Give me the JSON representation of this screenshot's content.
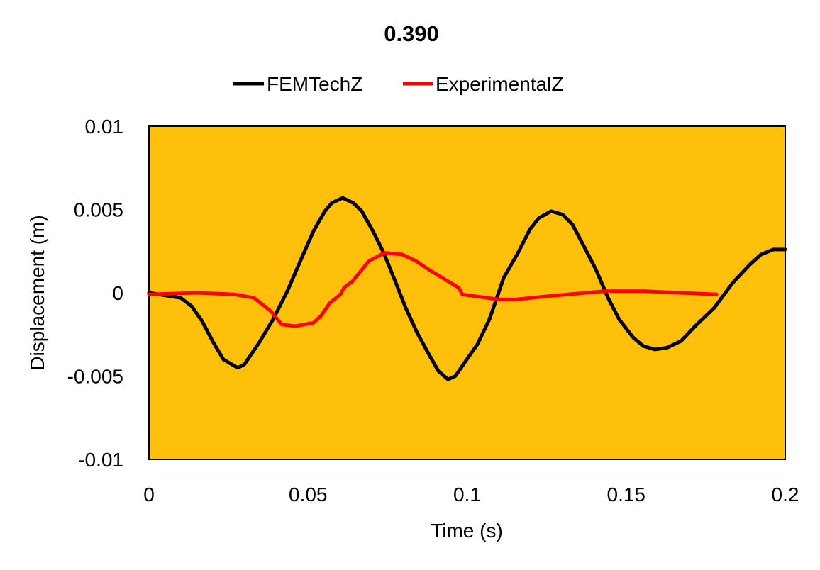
{
  "chart_data": {
    "type": "line",
    "title": "0.390",
    "xlabel": "Time (s)",
    "ylabel": "Displacement (m)",
    "xlim": [
      0,
      0.2
    ],
    "ylim": [
      -0.01,
      0.01
    ],
    "xticks": [
      0,
      0.05,
      0.1,
      0.15,
      0.2
    ],
    "xtick_labels": [
      "0",
      "0.05",
      "0.1",
      "0.15",
      "0.2"
    ],
    "yticks": [
      0.01,
      0.005,
      0,
      -0.005,
      -0.01
    ],
    "ytick_labels": [
      "0.01",
      "0.005",
      "0",
      "-0.005",
      "-0.01"
    ],
    "grid": false,
    "legend_position": "top",
    "plot_background": "#FFC00B",
    "series": [
      {
        "name": "FEMTechZ",
        "color": "#000000",
        "points": [
          [
            0,
            0
          ],
          [
            0.01,
            -0.0003
          ],
          [
            0.0134,
            -0.0008
          ],
          [
            0.0167,
            -0.0017
          ],
          [
            0.02,
            -0.0029
          ],
          [
            0.0234,
            -0.004
          ],
          [
            0.0279,
            -0.0045
          ],
          [
            0.03,
            -0.0043
          ],
          [
            0.0346,
            -0.003
          ],
          [
            0.039,
            -0.0016
          ],
          [
            0.0435,
            0.0001
          ],
          [
            0.048,
            0.0021
          ],
          [
            0.0517,
            0.0037
          ],
          [
            0.0553,
            0.0049
          ],
          [
            0.0575,
            0.0054
          ],
          [
            0.0609,
            0.0057
          ],
          [
            0.0642,
            0.0054
          ],
          [
            0.0669,
            0.0049
          ],
          [
            0.0707,
            0.0036
          ],
          [
            0.074,
            0.0023
          ],
          [
            0.0776,
            0.0006
          ],
          [
            0.0807,
            -0.0009
          ],
          [
            0.0843,
            -0.0024
          ],
          [
            0.088,
            -0.0037
          ],
          [
            0.091,
            -0.0047
          ],
          [
            0.094,
            -0.0052
          ],
          [
            0.0963,
            -0.005
          ],
          [
            0.0999,
            -0.004
          ],
          [
            0.1032,
            -0.0031
          ],
          [
            0.107,
            -0.0016
          ],
          [
            0.1115,
            0.0009
          ],
          [
            0.116,
            0.0024
          ],
          [
            0.1197,
            0.0038
          ],
          [
            0.1226,
            0.0045
          ],
          [
            0.1264,
            0.0049
          ],
          [
            0.13,
            0.0047
          ],
          [
            0.1331,
            0.0041
          ],
          [
            0.1367,
            0.0028
          ],
          [
            0.1405,
            0.0014
          ],
          [
            0.1443,
            -0.0003
          ],
          [
            0.1478,
            -0.0016
          ],
          [
            0.1523,
            -0.0027
          ],
          [
            0.1554,
            -0.0032
          ],
          [
            0.159,
            -0.0034
          ],
          [
            0.1628,
            -0.0033
          ],
          [
            0.1672,
            -0.0029
          ],
          [
            0.1717,
            -0.002
          ],
          [
            0.1777,
            -0.0009
          ],
          [
            0.1835,
            0.0006
          ],
          [
            0.1889,
            0.0017
          ],
          [
            0.1924,
            0.0023
          ],
          [
            0.1962,
            0.0026
          ],
          [
            0.2,
            0.0026
          ]
        ]
      },
      {
        "name": "ExperimentalZ",
        "color": "#FF0000",
        "points": [
          [
            0,
            -0.0001
          ],
          [
            0.015,
            0
          ],
          [
            0.027,
            -0.0001
          ],
          [
            0.033,
            -0.0003
          ],
          [
            0.0383,
            -0.0011
          ],
          [
            0.0417,
            -0.0019
          ],
          [
            0.046,
            -0.002
          ],
          [
            0.0517,
            -0.0018
          ],
          [
            0.054,
            -0.0014
          ],
          [
            0.0569,
            -0.0006
          ],
          [
            0.0602,
            -0.0001
          ],
          [
            0.0613,
            0.0003
          ],
          [
            0.064,
            0.0007
          ],
          [
            0.0691,
            0.0019
          ],
          [
            0.074,
            0.0024
          ],
          [
            0.0796,
            0.0023
          ],
          [
            0.084,
            0.0019
          ],
          [
            0.0887,
            0.0013
          ],
          [
            0.0974,
            0.0003
          ],
          [
            0.0985,
            -0.0001
          ],
          [
            0.11,
            -0.0004
          ],
          [
            0.1153,
            -0.0004
          ],
          [
            0.1255,
            -0.0002
          ],
          [
            0.1434,
            0.0001
          ],
          [
            0.1554,
            0.0001
          ],
          [
            0.1672,
            0.0
          ],
          [
            0.1784,
            -0.0001
          ]
        ]
      }
    ]
  }
}
